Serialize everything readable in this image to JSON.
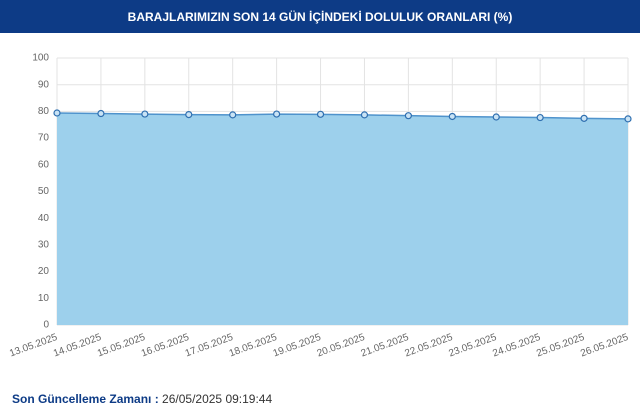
{
  "chart_data": {
    "type": "area",
    "title": "BARAJLARIMIZIN SON 14 GÜN İÇİNDEKİ DOLULUK ORANLARI (%)",
    "categories": [
      "13.05.2025",
      "14.05.2025",
      "15.05.2025",
      "16.05.2025",
      "17.05.2025",
      "18.05.2025",
      "19.05.2025",
      "20.05.2025",
      "21.05.2025",
      "22.05.2025",
      "23.05.2025",
      "24.05.2025",
      "25.05.2025",
      "26.05.2025"
    ],
    "values": [
      79.4,
      79.2,
      79.0,
      78.8,
      78.7,
      79.0,
      78.9,
      78.7,
      78.4,
      78.1,
      77.9,
      77.7,
      77.4,
      77.2
    ],
    "color": "#4f93cc",
    "fill": "#9dd0ec",
    "ylim": [
      0,
      100
    ],
    "yticks": [
      0,
      10,
      20,
      30,
      40,
      50,
      60,
      70,
      80,
      90,
      100
    ],
    "grid": true
  },
  "footer": {
    "label": "Son Güncelleme Zamanı :",
    "value": "26/05/2025 09:19:44"
  }
}
